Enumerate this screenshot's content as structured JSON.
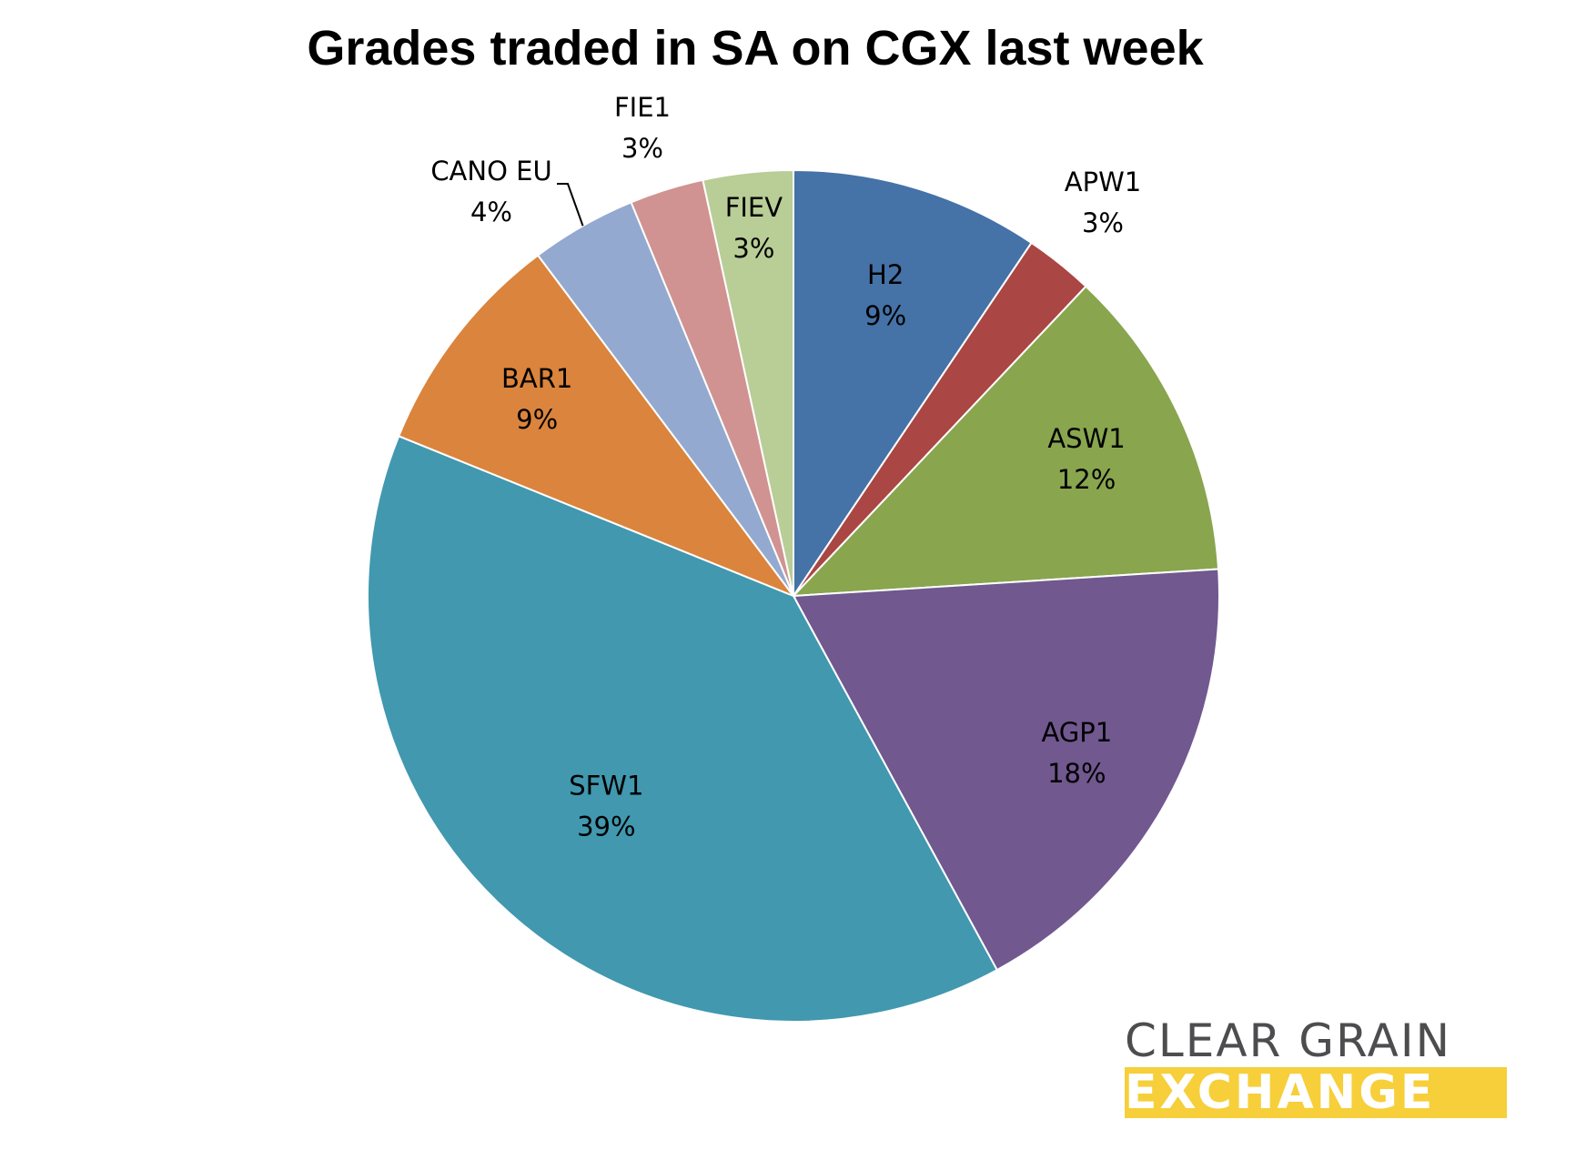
{
  "title": "Grades traded in SA on CGX last week",
  "chart_data": {
    "type": "pie",
    "title": "Grades traded in SA on CGX last week",
    "slices": [
      {
        "label": "H2",
        "percent_label": "9%",
        "value": 9.4,
        "color": "#4572a7"
      },
      {
        "label": "APW1",
        "percent_label": "3%",
        "value": 2.6,
        "color": "#aa4643"
      },
      {
        "label": "ASW1",
        "percent_label": "12%",
        "value": 11.9,
        "color": "#89a54e"
      },
      {
        "label": "AGP1",
        "percent_label": "18%",
        "value": 18.0,
        "color": "#71588f"
      },
      {
        "label": "SFW1",
        "percent_label": "39%",
        "value": 38.9,
        "color": "#4198af"
      },
      {
        "label": "BAR1",
        "percent_label": "9%",
        "value": 8.6,
        "color": "#db843d"
      },
      {
        "label": "CANO EU",
        "percent_label": "4%",
        "value": 4.0,
        "color": "#93a9cf"
      },
      {
        "label": "FIE1",
        "percent_label": "3%",
        "value": 2.8,
        "color": "#d09391"
      },
      {
        "label": "FIEV",
        "percent_label": "3%",
        "value": 3.4,
        "color": "#b9cd96"
      }
    ],
    "start_angle": "12 o'clock",
    "direction": "clockwise",
    "legend": "none"
  },
  "logo": {
    "line1": "CLEAR GRAIN",
    "line2": "EXCHANGE",
    "text_color": "#4d4d4f",
    "band_color": "#f6cf3a"
  }
}
